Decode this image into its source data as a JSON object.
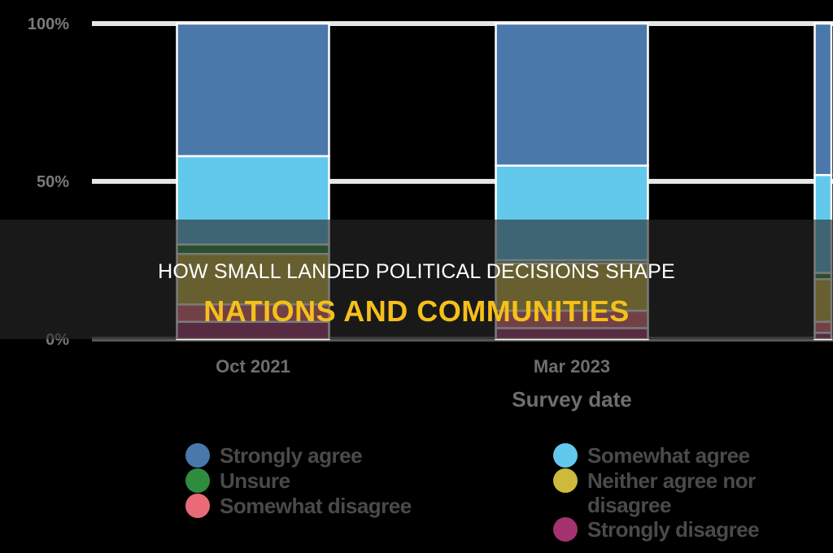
{
  "chart_data": {
    "type": "bar",
    "stacked": true,
    "categories": [
      "Oct 2021",
      "Mar 2023",
      ""
    ],
    "xlabel": "Survey date",
    "ylabel": "",
    "ylim": [
      0,
      100
    ],
    "yticks": [
      "0%",
      "50%",
      "100%"
    ],
    "grid": true,
    "legend_placement": "bottom",
    "series": [
      {
        "name": "Strongly disagree",
        "color": "#a3326f",
        "values": [
          5.5,
          3.5,
          2
        ]
      },
      {
        "name": "Somewhat disagree",
        "color": "#e96b78",
        "values": [
          5.5,
          5.5,
          3.5
        ]
      },
      {
        "name": "Neither agree nor disagree",
        "color": "#cdb93b",
        "values": [
          16,
          15,
          13.5
        ]
      },
      {
        "name": "Unsure",
        "color": "#2f8c3f",
        "values": [
          3,
          1,
          2
        ]
      },
      {
        "name": "Somewhat agree",
        "color": "#63c9ec",
        "values": [
          28,
          30,
          31
        ]
      },
      {
        "name": "Strongly agree",
        "color": "#4a78ab",
        "values": [
          42,
          45,
          48
        ]
      }
    ]
  },
  "legend": {
    "left": [
      {
        "label": "Strongly agree",
        "color": "#4a78ab"
      },
      {
        "label": "Unsure",
        "color": "#2f8c3f"
      },
      {
        "label": "Somewhat disagree",
        "color": "#e96b78"
      }
    ],
    "right": [
      {
        "label": "Somewhat agree",
        "color": "#63c9ec"
      },
      {
        "label": "Neither agree nor disagree",
        "color": "#cdb93b"
      },
      {
        "label": "Strongly disagree",
        "color": "#a3326f"
      }
    ]
  },
  "overlay": {
    "line1": "HOW SMALL LANDED POLITICAL DECISIONS SHAPE",
    "line2": "NATIONS AND COMMUNITIES"
  }
}
